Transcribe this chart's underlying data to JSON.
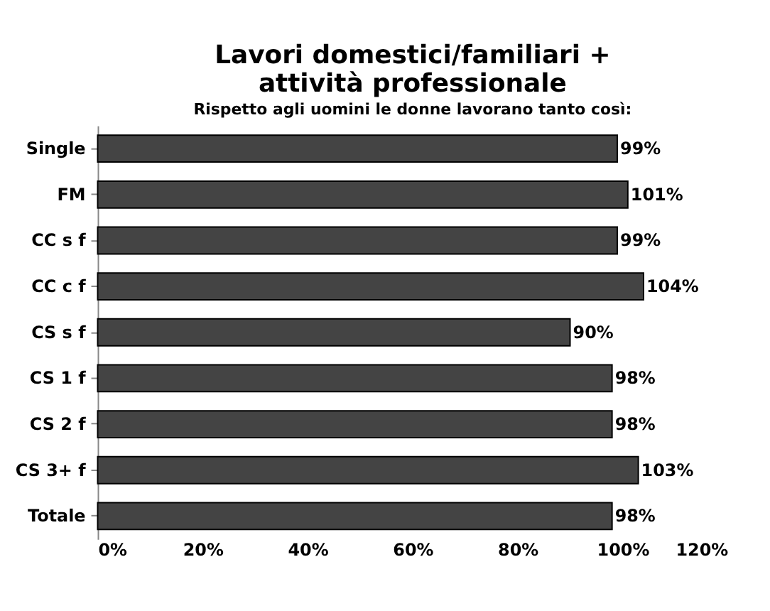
{
  "chart_data": {
    "type": "bar",
    "orientation": "horizontal",
    "title": [
      "Lavori domestici/familiari +",
      "attività professionale"
    ],
    "subtitle": "Rispetto agli uomini le donne lavorano tanto così:",
    "categories": [
      "Single",
      "FM",
      "CC s f",
      "CC c f",
      "CS s f",
      "CS 1 f",
      "CS 2 f",
      "CS 3+ f",
      "Totale"
    ],
    "values": [
      99,
      101,
      99,
      104,
      90,
      98,
      98,
      103,
      98
    ],
    "value_labels": [
      "99%",
      "101%",
      "99%",
      "104%",
      "90%",
      "98%",
      "98%",
      "103%",
      "98%"
    ],
    "color": "#444444",
    "xlim": [
      0,
      120
    ],
    "xticks": [
      {
        "value": 0,
        "label": "0%"
      },
      {
        "value": 20,
        "label": "20%"
      },
      {
        "value": 40,
        "label": "40%"
      },
      {
        "value": 60,
        "label": "60%"
      },
      {
        "value": 80,
        "label": "80%"
      },
      {
        "value": 100,
        "label": "100%"
      },
      {
        "value": 120,
        "label": "120%"
      }
    ],
    "grid": false
  }
}
